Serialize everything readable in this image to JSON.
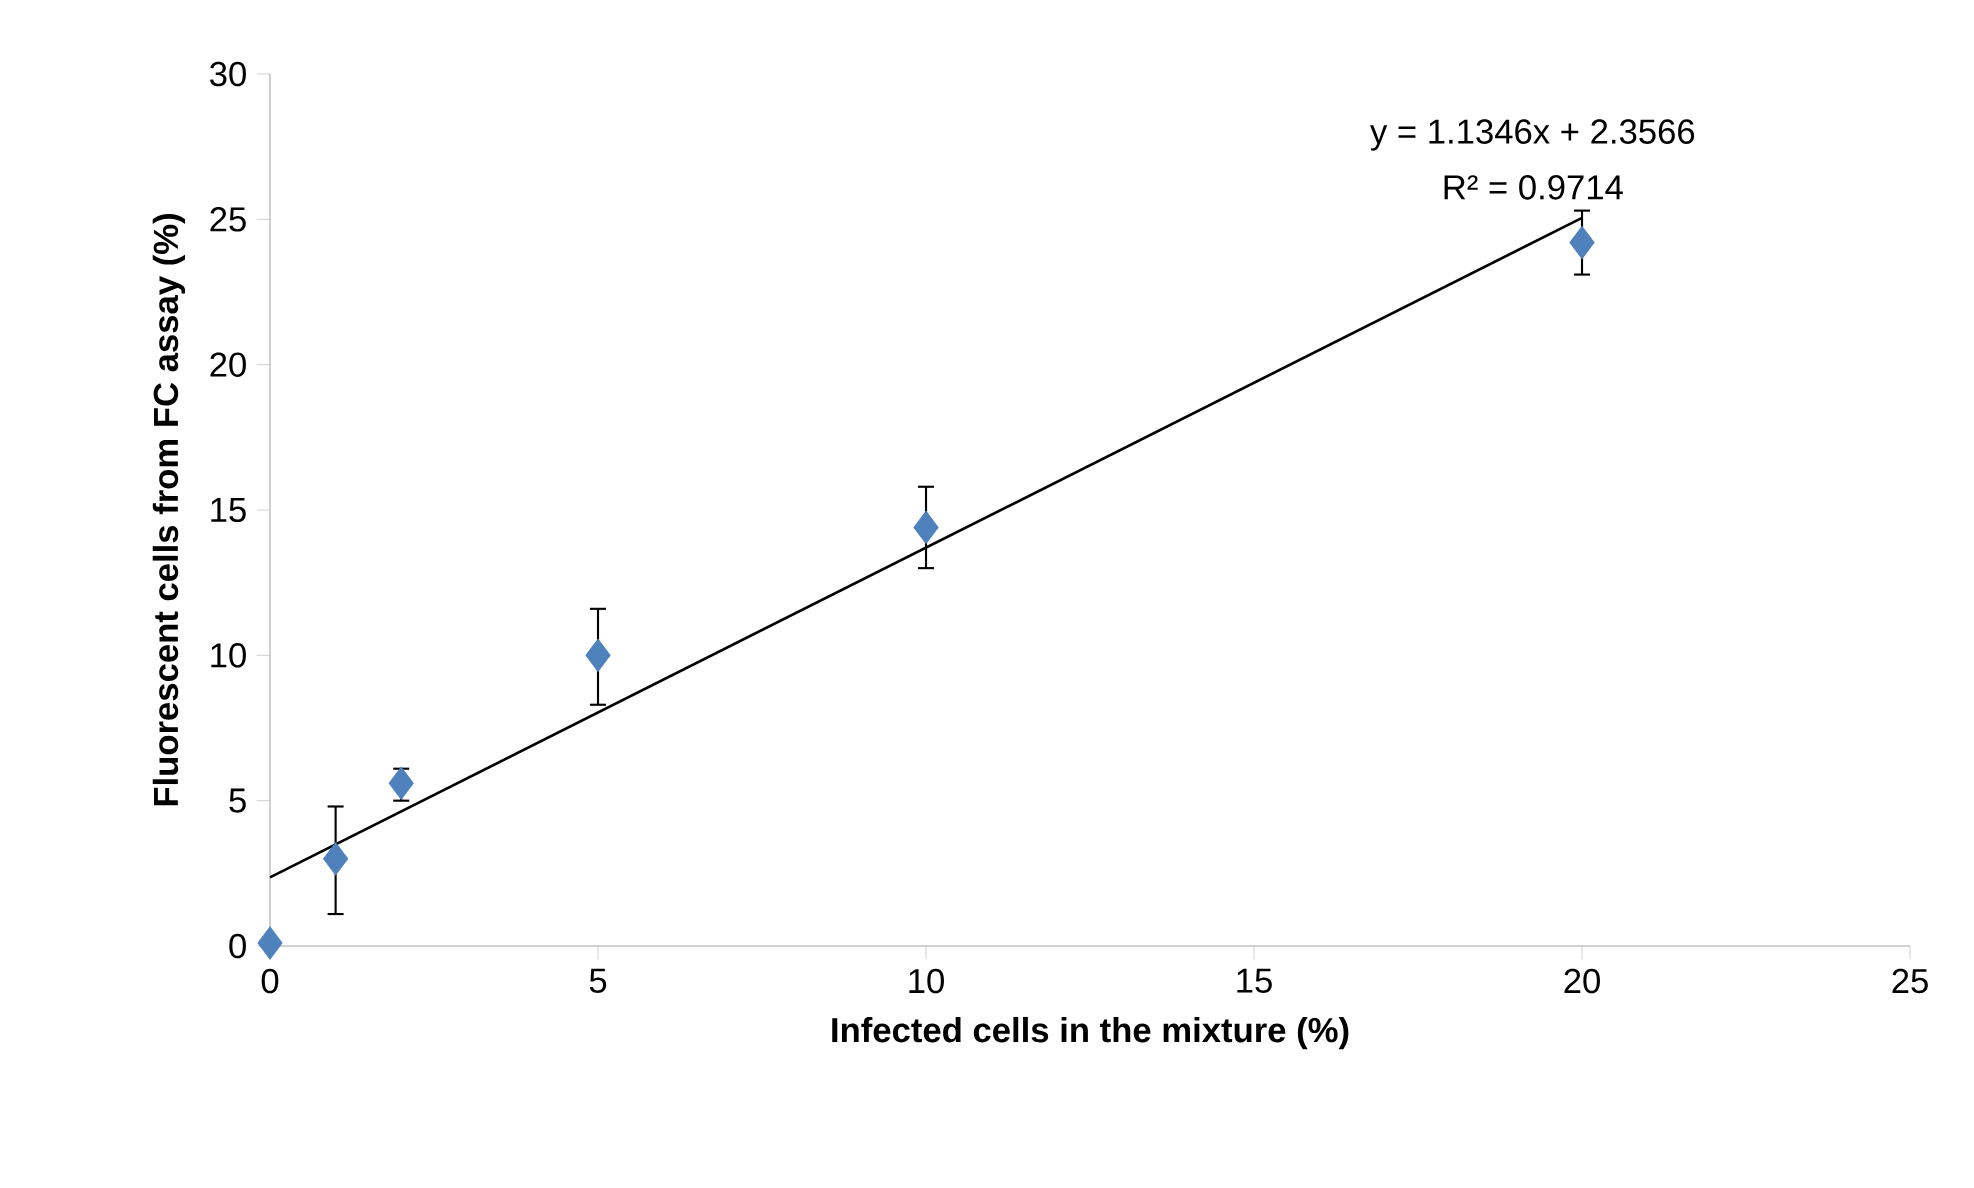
{
  "chart_data": {
    "type": "scatter",
    "xlabel": "Infected cells in the mixture (%)",
    "ylabel": "Fluorescent cells from FC assay (%)",
    "xlim": [
      0,
      25
    ],
    "xticks": [
      0,
      5,
      10,
      15,
      20,
      25
    ],
    "ylim": [
      0,
      30
    ],
    "yticks": [
      0,
      5,
      10,
      15,
      20,
      25,
      30
    ],
    "grid": false,
    "marker": "diamond",
    "annotations": [
      "y = 1.1346x + 2.3566",
      "R² = 0.9714"
    ],
    "series": [
      {
        "color": "#4f81bd",
        "x": [
          0,
          1,
          2,
          5,
          10,
          20
        ],
        "values": [
          0.1,
          3.0,
          5.6,
          10.0,
          14.4,
          24.2
        ],
        "errors": [
          null,
          [
            1.1,
            4.8
          ],
          [
            5.0,
            6.1
          ],
          [
            8.3,
            11.6
          ],
          [
            13.0,
            15.8
          ],
          [
            23.1,
            25.3
          ]
        ]
      },
      {
        "type": "line",
        "color": "#000000",
        "x": [
          0,
          20
        ],
        "values": [
          2.36,
          25.05
        ],
        "marker": "none",
        "line_style": "solid"
      }
    ]
  }
}
